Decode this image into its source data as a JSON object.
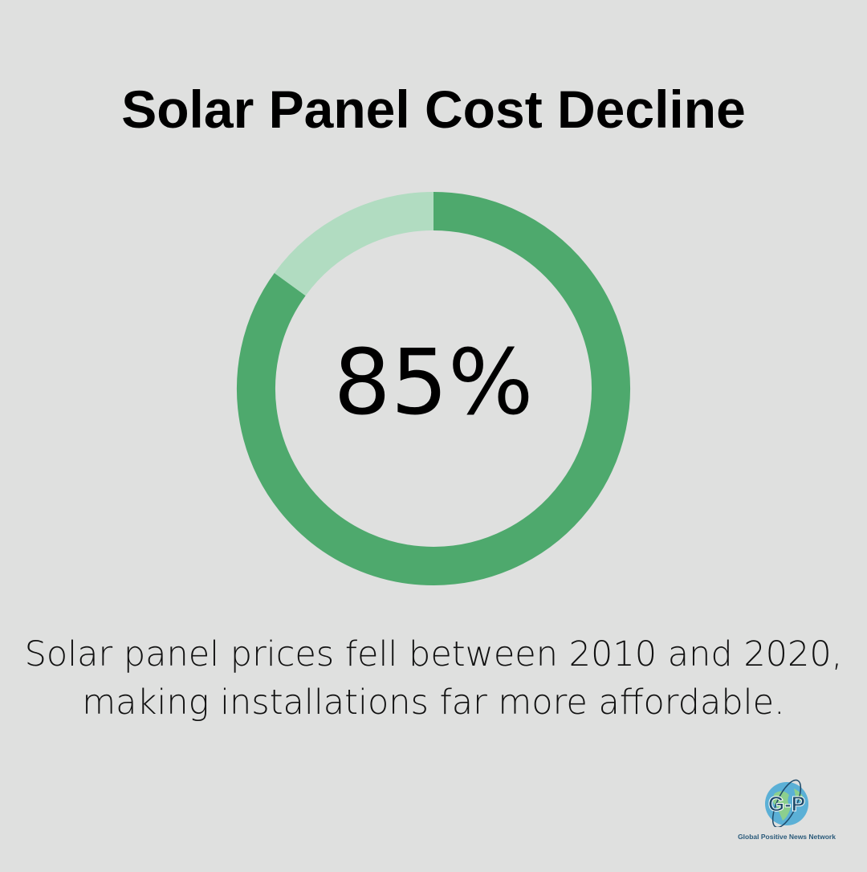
{
  "chart_data": {
    "type": "pie",
    "title": "Solar Panel Cost Decline",
    "center_label": "85%",
    "values": [
      85,
      15
    ],
    "colors": [
      "#4ea96d",
      "#b1dcc1"
    ],
    "donut": true
  },
  "caption": "Solar panel prices fell between 2010 and 2020, making installations far more affordable.",
  "logo": {
    "letters": "G P",
    "text": "Global Positive News Network"
  }
}
